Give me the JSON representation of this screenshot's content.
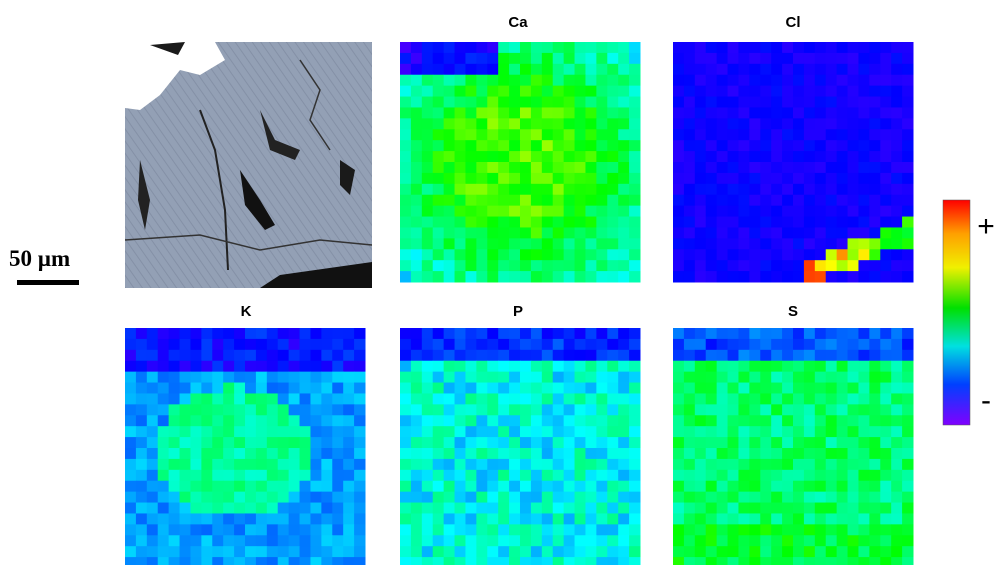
{
  "maps": [
    {
      "label": "Ca"
    },
    {
      "label": "Cl"
    },
    {
      "label": "K"
    },
    {
      "label": "P"
    },
    {
      "label": "S"
    }
  ],
  "scale_bar": "50 µm",
  "color_scale": {
    "max": "+",
    "min": "-"
  }
}
